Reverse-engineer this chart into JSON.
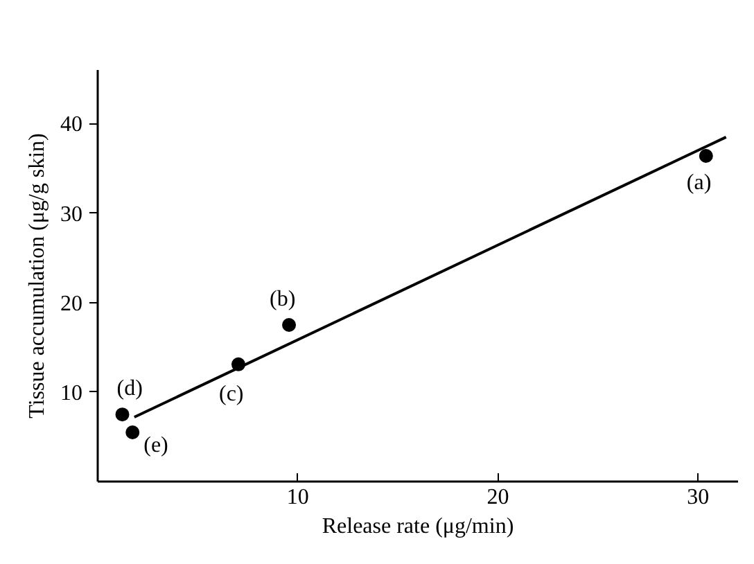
{
  "chart_data": {
    "type": "scatter",
    "xlabel": "Release rate (μg/min)",
    "ylabel": "Tissue accumulation (μg/g skin)",
    "xlim": [
      0,
      32
    ],
    "ylim": [
      0,
      46
    ],
    "xticks": [
      10,
      20,
      30
    ],
    "yticks": [
      10,
      20,
      30,
      40
    ],
    "grid": false,
    "series": [
      {
        "color": "#000000",
        "marker": "circle",
        "x": [
          30.4,
          9.56,
          7.03,
          1.23,
          1.74
        ],
        "values": [
          36.4,
          17.5,
          13.1,
          7.5,
          5.5
        ]
      },
      {
        "type": "line",
        "color": "#000000",
        "marker": "none",
        "line_style": "solid",
        "x": [
          1.83,
          31.4
        ],
        "values": [
          7.2,
          38.5
        ]
      }
    ],
    "annotations": [
      {
        "text": "(a)",
        "x": 30.4,
        "y": 36.4
      },
      {
        "text": "(b)",
        "x": 9.56,
        "y": 17.5
      },
      {
        "text": "(c)",
        "x": 7.03,
        "y": 13.1
      },
      {
        "text": "(d)",
        "x": 1.23,
        "y": 7.5
      },
      {
        "text": "(e)",
        "x": 1.74,
        "y": 5.5
      }
    ]
  }
}
